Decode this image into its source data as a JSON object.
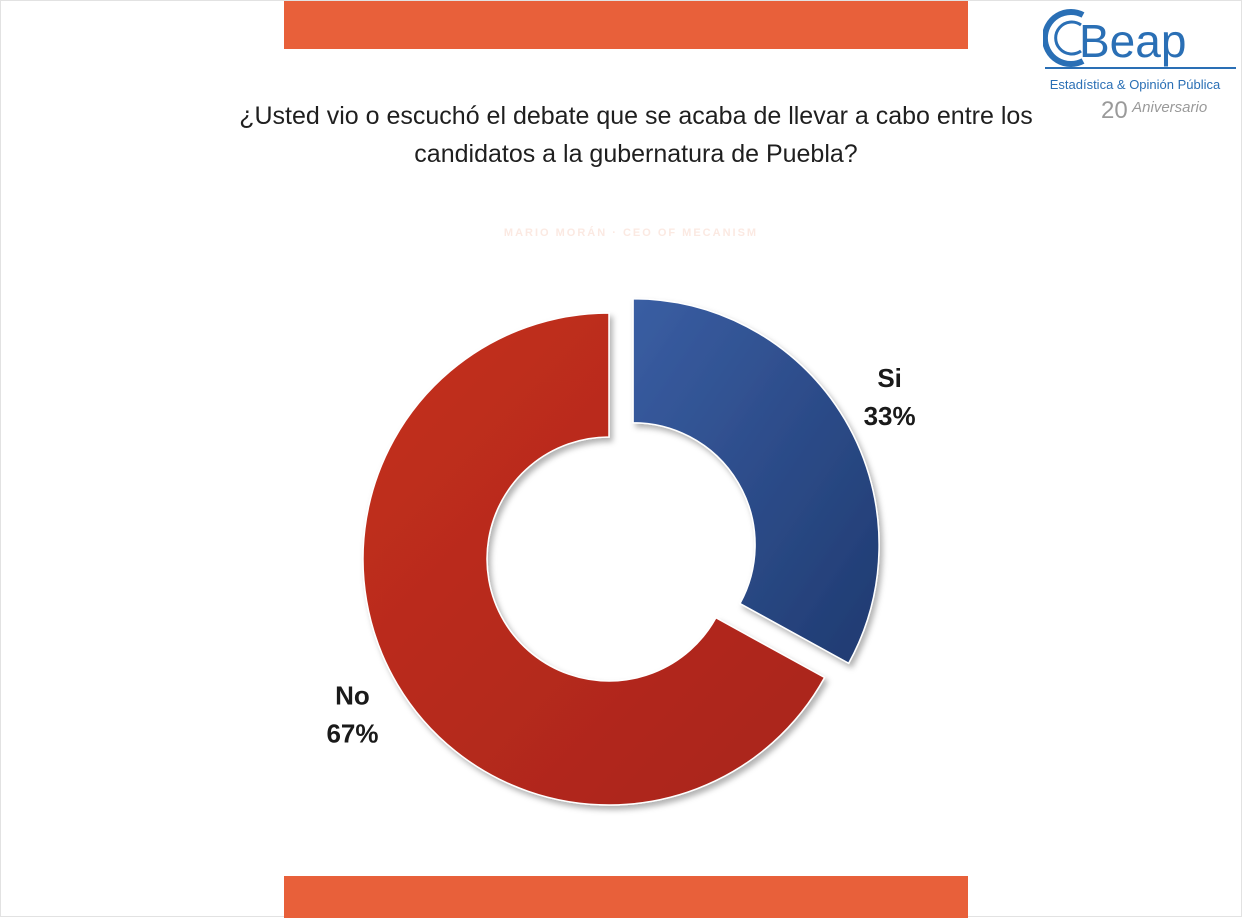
{
  "title": "¿Usted vio o escuchó el debate que se acaba de llevar a cabo entre los candidatos a la gubernatura de Puebla?",
  "logo": {
    "name": "Beap",
    "subtitle": "Estadística & Opinión Pública",
    "anniversary_number": "20",
    "anniversary_word": "Aniversario",
    "color": "#2a6fb5"
  },
  "watermark": "MARIO MORÁN · CEO OF MECANISM",
  "accent_color": "#e8603a",
  "chart_data": {
    "type": "pie",
    "style": "donut",
    "categories": [
      "Si",
      "No"
    ],
    "values": [
      33,
      67
    ],
    "value_labels": [
      "33%",
      "67%"
    ],
    "colors": [
      "#2c4a86",
      "#bd2a1e"
    ],
    "exploded": "Si"
  }
}
